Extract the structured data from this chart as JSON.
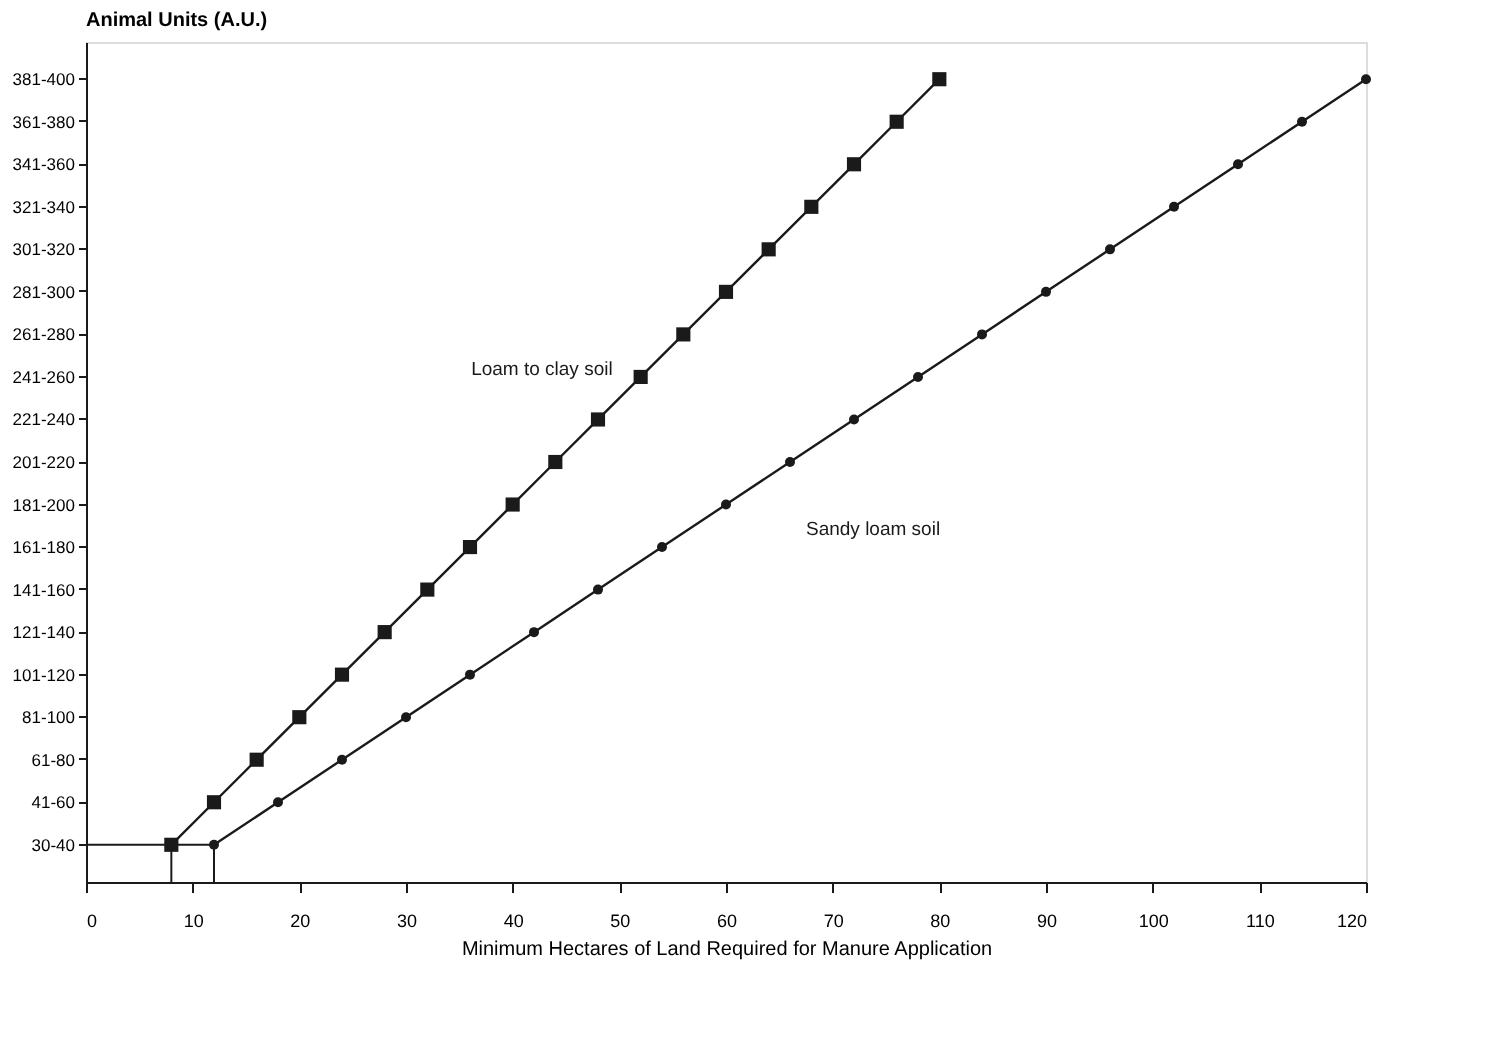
{
  "chart_data": {
    "type": "line",
    "orientation": "horizontal",
    "xlabel": "Minimum Hectares of Land Required for Manure Application",
    "ylabel": "Animal Units (A.U.)",
    "categories": [
      "381-400",
      "361-380",
      "341-360",
      "321-340",
      "301-320",
      "281-300",
      "261-280",
      "241-260",
      "221-240",
      "201-220",
      "181-200",
      "161-180",
      "141-160",
      "121-140",
      "101-120",
      "81-100",
      "61-80",
      "41-60",
      "30-40"
    ],
    "xlim": [
      0,
      120
    ],
    "xticks": [
      0,
      10,
      20,
      30,
      40,
      50,
      60,
      70,
      80,
      90,
      100,
      110,
      120
    ],
    "grid": false,
    "line_style": "solid",
    "ref_lines": [
      {
        "axis": "y",
        "value": "30-40"
      }
    ],
    "series": [
      {
        "name": "Loam to clay soil",
        "color": "#1a1a1a",
        "marker": "square",
        "values": [
          80,
          76,
          72,
          68,
          64,
          60,
          56,
          52,
          48,
          44,
          40,
          36,
          32,
          28,
          24,
          20,
          16,
          12,
          8
        ]
      },
      {
        "name": "Sandy loam soil",
        "color": "#1a1a1a",
        "marker": "circle",
        "values": [
          120,
          114,
          108,
          102,
          96,
          90,
          84,
          78,
          72,
          66,
          60,
          54,
          48,
          42,
          36,
          30,
          24,
          18,
          12
        ]
      }
    ]
  }
}
